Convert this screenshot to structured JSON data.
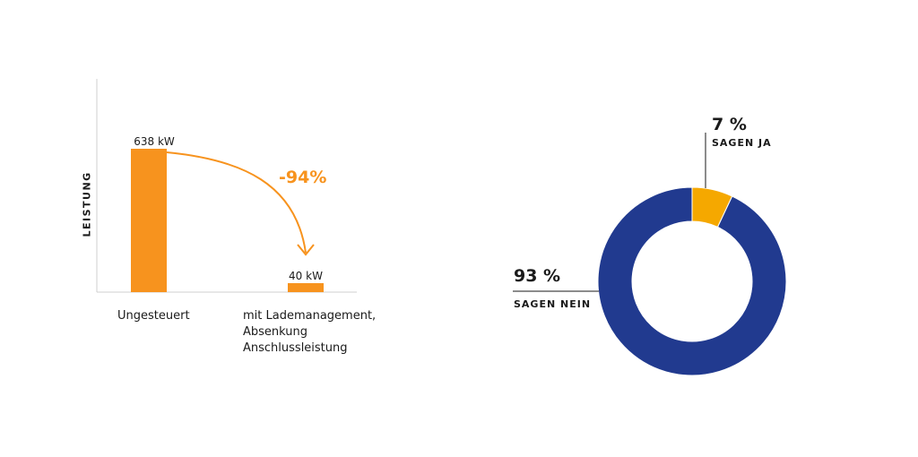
{
  "chart_data": [
    {
      "type": "bar",
      "ylabel": "LEISTUNG",
      "categories": [
        "Ungesteuert",
        "mit Lademanagement,\nAbsenkung\nAnschlussleistung"
      ],
      "values": [
        638,
        40
      ],
      "value_labels": [
        "638 kW",
        "40 kW"
      ],
      "unit": "kW",
      "annotation": "-94%",
      "color": "#f7931e",
      "grid": false
    },
    {
      "type": "pie",
      "donut": true,
      "slices": [
        {
          "label": "SAGEN JA",
          "value": 7,
          "value_label": "7 %",
          "color": "#f5a800"
        },
        {
          "label": "SAGEN NEIN",
          "value": 93,
          "value_label": "93 %",
          "color": "#213a8f"
        }
      ]
    }
  ]
}
